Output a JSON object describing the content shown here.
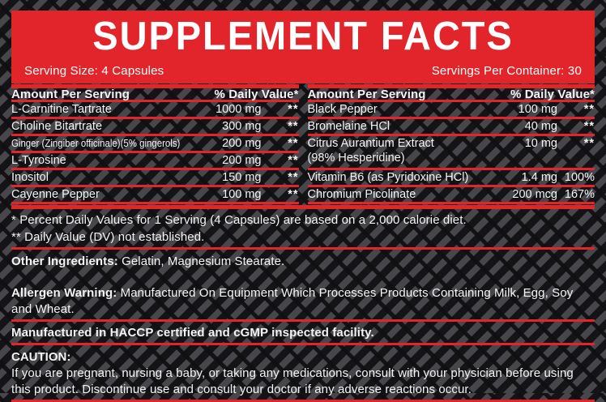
{
  "header": {
    "title": "SUPPLEMENT FACTS",
    "serving_size": "Serving Size: 4 Capsules",
    "servings_per_container": "Servings Per Container: 30"
  },
  "table": {
    "amount_header": "Amount Per Serving",
    "dv_header": "% Daily Value*",
    "left_rows": [
      {
        "name": "L-Carnitine Tartrate",
        "amount": "1000 mg",
        "dv": "**"
      },
      {
        "name": "Choline Bitartrate",
        "amount": "300 mg",
        "dv": "**"
      },
      {
        "name": "Ginger (Zingiber officinale)(5% gingerols)",
        "amount": "200 mg",
        "dv": "**"
      },
      {
        "name": "L-Tyrosine",
        "amount": "200 mg",
        "dv": "**"
      },
      {
        "name": "Inositol",
        "amount": "150 mg",
        "dv": "**"
      },
      {
        "name": "Cayenne Pepper",
        "amount": "100 mg",
        "dv": "**"
      }
    ],
    "right_rows": [
      {
        "name": "Black Pepper",
        "amount": "100 mg",
        "dv": "**"
      },
      {
        "name": "Bromelaine HCl",
        "amount": "40 mg",
        "dv": "**"
      },
      {
        "name": "Citrus Aurantium Extract",
        "sub": "(98% Hesperidine)",
        "amount": "10 mg",
        "dv": "**"
      },
      {
        "name": "Vitamin B6 (as Pyridoxine HCl)",
        "amount": "1.4 mg",
        "dv": "100%"
      },
      {
        "name": "Chromium Picolinate",
        "amount": "200 mcg",
        "dv": "167%"
      }
    ]
  },
  "footnotes": {
    "daily_value": "* Percent Daily Values for 1 Serving (4 Capsules) are based on a 2,000 calorie diet.",
    "not_established": "** Daily Value (DV) not established."
  },
  "other_ingredients": {
    "label": "Other Ingredients:",
    "text": "Gelatin, Magnesium Stearate."
  },
  "allergen": {
    "label": "Allergen Warning:",
    "text": "Manufactured On Equipment Which Processes Products Containing Milk, Egg, Soy and Wheat."
  },
  "manufacturing": "Manufactured in HACCP certified and cGMP inspected facility.",
  "caution": {
    "label": "CAUTION:",
    "text": "If you are pregnant, nursing a baby, or taking any medications, consult with your physician before using this product. Discontinue use and consult your doctor if any adverse reactions occur."
  },
  "colors": {
    "accent_red": "#e2242b",
    "background_black": "#141417",
    "pattern_gray": "#46464b",
    "text_white": "#ffffff"
  }
}
